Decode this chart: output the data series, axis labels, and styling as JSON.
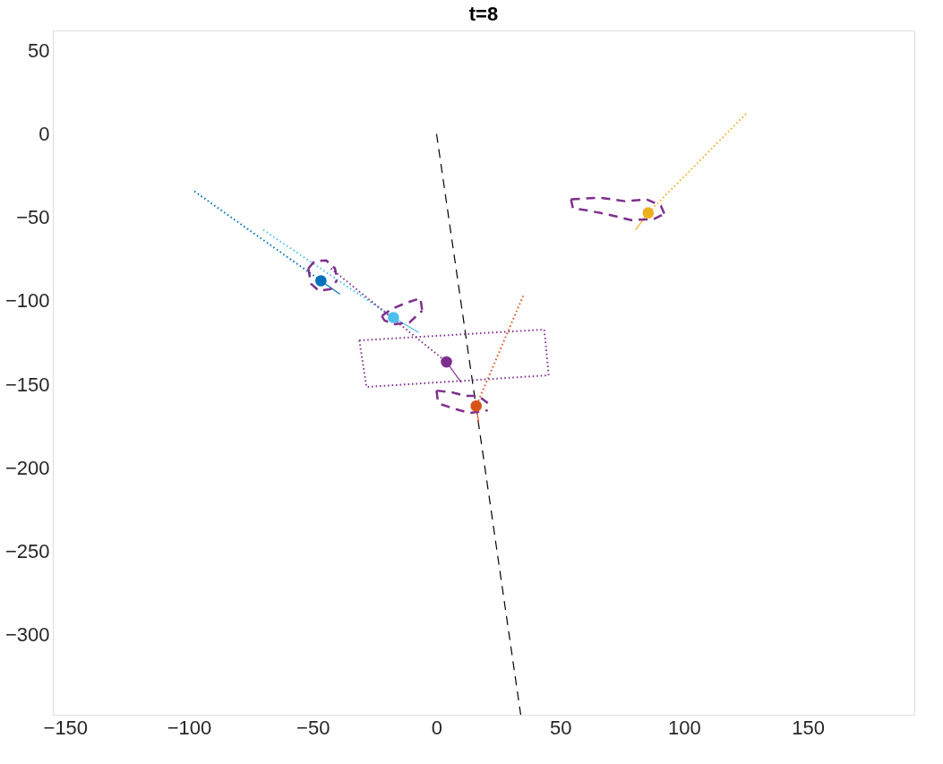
{
  "chart_data": {
    "type": "line",
    "title": "t=8",
    "xlim": [
      -155,
      193
    ],
    "ylim": [
      -348,
      62
    ],
    "xticks": [
      -150,
      -100,
      -50,
      0,
      50,
      100,
      150
    ],
    "yticks": [
      -300,
      -250,
      -200,
      -150,
      -100,
      -50,
      0,
      50
    ],
    "grid": false,
    "series": [
      {
        "color": "#000000",
        "line_style": "dashed",
        "x": [
          0,
          34
        ],
        "values": [
          0,
          -348
        ]
      },
      {
        "color": "#0072bd",
        "line_style": "dotted",
        "x": [
          -97.8,
          -46.7
        ],
        "values": [
          -34.4,
          -88
        ]
      },
      {
        "color": "#4dbeee",
        "line_style": "dotted",
        "x": [
          -70,
          -17.4
        ],
        "values": [
          -57.5,
          -110
        ]
      },
      {
        "color": "#7e2f8e",
        "line_style": "dotted",
        "x": [
          -42.7,
          4
        ],
        "values": [
          -80.6,
          -136.6
        ]
      },
      {
        "color": "#d95319",
        "line_style": "dotted",
        "x": [
          35,
          16
        ],
        "values": [
          -97,
          -163
        ]
      },
      {
        "color": "#edb120",
        "line_style": "dotted",
        "x": [
          125,
          85.5
        ],
        "values": [
          12,
          -47.3
        ]
      },
      {
        "color": "#0072bd",
        "line_style": "solid",
        "x": [
          -46.7,
          -39
        ],
        "values": [
          -88,
          -96
        ]
      },
      {
        "color": "#4dbeee",
        "line_style": "solid",
        "x": [
          -17.4,
          -7.2
        ],
        "values": [
          -110,
          -119
        ]
      },
      {
        "color": "#7e2f8e",
        "line_style": "solid",
        "x": [
          4,
          10
        ],
        "values": [
          -136.6,
          -149
        ]
      },
      {
        "color": "#d95319",
        "line_style": "solid",
        "x": [
          16,
          17
        ],
        "values": [
          -163,
          -173
        ]
      },
      {
        "color": "#edb120",
        "line_style": "solid",
        "x": [
          85.5,
          80.4
        ],
        "values": [
          -47.3,
          -57.5
        ]
      },
      {
        "color": "#7e2f8e",
        "line_style": "dotted",
        "x": [
          -31.2,
          43.5,
          45.3
        ],
        "values": [
          -123.7,
          -117.2,
          -144.6
        ]
      },
      {
        "color": "#7e2f8e",
        "line_style": "dotted",
        "x": [
          -31.2,
          -28.3,
          45.3
        ],
        "values": [
          -123.7,
          -151.6,
          -144.6
        ]
      },
      {
        "color": "#7e2f8e",
        "line_style": "dashed",
        "x": [
          -51.8,
          -49.3,
          -44.6,
          -41,
          -40.2
        ],
        "values": [
          -80.6,
          -76.3,
          -75.8,
          -80.6,
          -87.6
        ]
      },
      {
        "color": "#7e2f8e",
        "line_style": "dashed",
        "x": [
          -51.8,
          -50.7,
          -47.5,
          -42.8,
          -40.2
        ],
        "values": [
          -80.6,
          -89.8,
          -94,
          -93,
          -87.6
        ]
      },
      {
        "color": "#7e2f8e",
        "line_style": "dashed",
        "x": [
          -22.1,
          -18.1,
          -12,
          -6.5,
          -5.8
        ],
        "values": [
          -109.1,
          -104.8,
          -101.1,
          -98.4,
          -105.9
        ]
      },
      {
        "color": "#7e2f8e",
        "line_style": "dashed",
        "x": [
          -22.1,
          -21,
          -16.7,
          -10.9,
          -5.8
        ],
        "values": [
          -109.1,
          -111.8,
          -114,
          -112.9,
          -105.9
        ]
      },
      {
        "color": "#7e2f8e",
        "line_style": "dashed",
        "x": [
          0,
          6.2,
          11.6,
          17,
          20.7
        ],
        "values": [
          -153.8,
          -154.8,
          -157,
          -157,
          -161.3
        ]
      },
      {
        "color": "#7e2f8e",
        "line_style": "dashed",
        "x": [
          0,
          0.4,
          1.4,
          8,
          13.4,
          20.7
        ],
        "values": [
          -153.8,
          -158.6,
          -161.8,
          -165,
          -167.2,
          -165.6
        ]
      },
      {
        "color": "#7e2f8e",
        "line_style": "dashed",
        "x": [
          54.3,
          65.9,
          76.1,
          84.8,
          90.6,
          92
        ],
        "values": [
          -39.2,
          -38.2,
          -40.3,
          -39.2,
          -43,
          -47.8
        ]
      },
      {
        "color": "#7e2f8e",
        "line_style": "dashed",
        "x": [
          54.3,
          55.1,
          60.5,
          69.6,
          78.6,
          87.7,
          92
        ],
        "values": [
          -39.2,
          -44.6,
          -45.7,
          -48.4,
          -51.6,
          -51.1,
          -47.8
        ]
      },
      {
        "type": "scatter",
        "marker": "circle",
        "x": [
          -46.7,
          -17.4,
          4,
          16,
          85.5
        ],
        "values": [
          -88,
          -110,
          -136.6,
          -163,
          -47.3
        ],
        "colors": [
          "#0072bd",
          "#4dbeee",
          "#7e2f8e",
          "#d95319",
          "#edb120"
        ]
      }
    ]
  }
}
